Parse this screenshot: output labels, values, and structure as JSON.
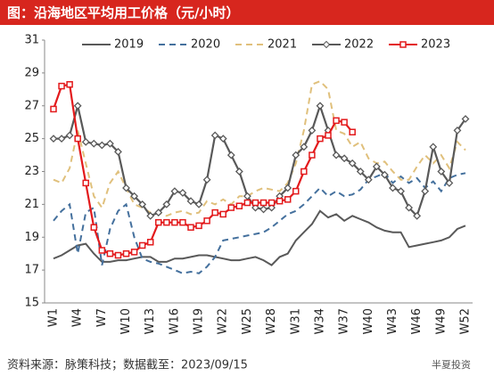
{
  "chart_data": {
    "type": "line",
    "title": "图：沿海地区平均用工价格（元/小时）",
    "source": "资料来源：脉策科技；数据截至：2023/09/15",
    "watermark": "半夏投资",
    "categories": [
      "W1",
      null,
      null,
      "W4",
      null,
      null,
      "W7",
      null,
      null,
      "W10",
      null,
      null,
      "W13",
      null,
      null,
      "W16",
      null,
      null,
      "W19",
      null,
      null,
      "W22",
      null,
      null,
      "W25",
      null,
      null,
      "W28",
      null,
      null,
      "W31",
      null,
      null,
      "W34",
      null,
      null,
      "W37",
      null,
      null,
      "W40",
      null,
      null,
      "W43",
      null,
      null,
      "W46",
      null,
      null,
      "W49",
      null,
      null,
      "W52"
    ],
    "ylim": [
      15,
      31
    ],
    "yticks": [
      15,
      17,
      19,
      21,
      23,
      25,
      27,
      29,
      31
    ],
    "series": [
      {
        "name": "2019",
        "color": "#595959",
        "dash": "",
        "marker": "none",
        "values": [
          17.7,
          17.9,
          18.2,
          18.5,
          18.6,
          18.0,
          17.5,
          17.5,
          17.6,
          17.6,
          17.7,
          17.8,
          17.8,
          17.5,
          17.5,
          17.7,
          17.7,
          17.8,
          17.9,
          17.9,
          17.8,
          17.7,
          17.6,
          17.6,
          17.7,
          17.8,
          17.6,
          17.3,
          17.8,
          18.0,
          18.8,
          19.3,
          19.8,
          20.6,
          20.2,
          20.4,
          20.0,
          20.3,
          20.1,
          19.9,
          19.6,
          19.4,
          19.3,
          19.3,
          18.4,
          18.5,
          18.6,
          18.7,
          18.8,
          19.0,
          19.5,
          19.7
        ]
      },
      {
        "name": "2020",
        "color": "#44709d",
        "dash": "7,5",
        "marker": "none",
        "values": [
          20.0,
          20.6,
          21.0,
          18.0,
          20.5,
          20.8,
          17.3,
          19.5,
          20.6,
          21.0,
          19.0,
          17.7,
          17.5,
          17.4,
          17.2,
          17.0,
          16.8,
          16.9,
          16.8,
          17.2,
          17.8,
          18.8,
          18.9,
          19.0,
          19.1,
          19.2,
          19.3,
          19.6,
          20.0,
          20.4,
          20.6,
          21.0,
          21.5,
          22.0,
          21.5,
          21.8,
          21.5,
          21.6,
          21.9,
          22.5,
          22.7,
          22.9,
          22.3,
          22.7,
          22.3,
          22.6,
          22.0,
          22.4,
          21.8,
          22.6,
          22.8,
          22.9
        ]
      },
      {
        "name": "2021",
        "color": "#e0c07c",
        "dash": "7,5",
        "marker": "none",
        "values": [
          22.5,
          22.3,
          23.2,
          25.5,
          23.5,
          21.5,
          20.8,
          22.3,
          23.0,
          22.0,
          21.0,
          20.8,
          20.5,
          20.5,
          20.3,
          20.5,
          20.6,
          20.4,
          20.5,
          21.2,
          21.0,
          21.3,
          21.0,
          21.5,
          21.5,
          21.8,
          22.0,
          21.9,
          21.8,
          22.3,
          23.5,
          25.5,
          28.3,
          28.5,
          28.0,
          25.5,
          25.3,
          24.5,
          24.8,
          23.8,
          23.5,
          23.6,
          23.0,
          22.5,
          22.5,
          23.3,
          24.0,
          23.5,
          24.0,
          23.2,
          24.8,
          24.3
        ]
      },
      {
        "name": "2022",
        "color": "#595959",
        "dash": "",
        "marker": "diamond",
        "values": [
          25.0,
          25.0,
          25.2,
          27.0,
          24.8,
          24.7,
          24.6,
          24.7,
          24.2,
          22.0,
          21.5,
          21.0,
          20.3,
          20.5,
          21.0,
          21.8,
          21.7,
          21.2,
          21.0,
          22.5,
          25.2,
          25.0,
          24.0,
          23.0,
          21.5,
          20.8,
          20.7,
          20.8,
          21.5,
          22.0,
          24.0,
          24.5,
          25.5,
          27.0,
          25.5,
          24.0,
          23.8,
          23.5,
          23.0,
          22.5,
          23.3,
          22.8,
          22.0,
          21.8,
          20.8,
          20.3,
          21.8,
          24.5,
          23.0,
          22.3,
          25.5,
          26.2
        ]
      },
      {
        "name": "2023",
        "color": "#e31a1c",
        "dash": "",
        "marker": "square",
        "values": [
          26.8,
          28.2,
          28.3,
          25.0,
          22.3,
          19.6,
          18.2,
          18.0,
          17.9,
          18.0,
          18.1,
          18.5,
          18.7,
          19.9,
          19.9,
          19.9,
          19.9,
          19.6,
          19.7,
          20.0,
          20.5,
          20.4,
          20.8,
          20.9,
          21.1,
          21.1,
          21.1,
          21.1,
          21.2,
          21.3,
          21.8,
          23.0,
          24.0,
          25.0,
          25.2,
          26.1,
          26.0,
          25.4,
          null,
          null,
          null,
          null,
          null,
          null,
          null,
          null,
          null,
          null,
          null,
          null,
          null,
          null
        ]
      }
    ]
  }
}
